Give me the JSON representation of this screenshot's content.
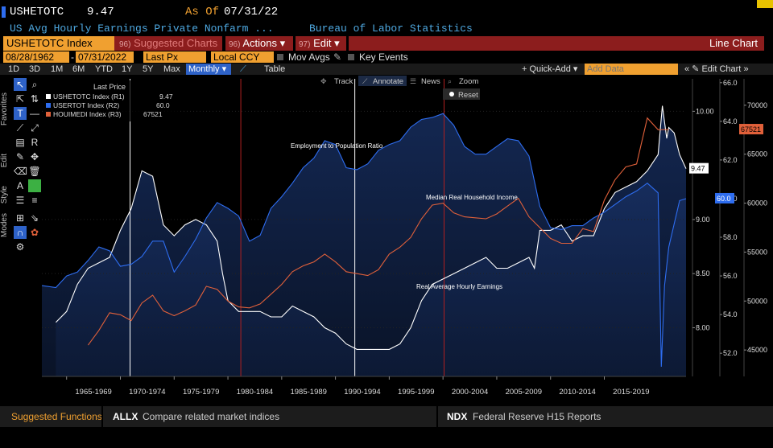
{
  "header": {
    "ticker": "USHETOTC",
    "value": "9.47",
    "asof_label": "As Of",
    "asof_date": "07/31/22",
    "description": "US Avg Hourly Earnings Private Nonfarm ...",
    "source": "Bureau of Labor Statistics"
  },
  "function_bar": {
    "index_label": "USHETOTC Index",
    "suggested_num": "96)",
    "suggested_label": "Suggested Charts",
    "actions_num": "96)",
    "actions_label": "Actions",
    "edit_num": "97)",
    "edit_label": "Edit",
    "chart_type": "Line Chart"
  },
  "params": {
    "start_date": "08/28/1962",
    "end_date": "07/31/2022",
    "price_field": "Last Px",
    "currency": "Local CCY",
    "mov_avgs": "Mov Avgs",
    "key_events": "Key Events"
  },
  "ranges": [
    "1D",
    "3D",
    "1M",
    "6M",
    "YTD",
    "1Y",
    "5Y",
    "Max"
  ],
  "range_selected": "Monthly",
  "table_label": "Table",
  "quick_add": "Quick-Add",
  "add_data_placeholder": "Add Data",
  "edit_chart": "Edit Chart",
  "sidebar_tabs": [
    "Favorites",
    "Edit",
    "Style",
    "Modes"
  ],
  "chart_tools": {
    "track": "Track",
    "annotate": "Annotate",
    "news": "News",
    "zoom": "Zoom",
    "reset": "Reset"
  },
  "legend": {
    "title": "Last Price",
    "items": [
      {
        "label": "USHETOTC Index  (R1)",
        "value": "9.47",
        "color": "#ffffff"
      },
      {
        "label": "USERTOT Index  (R2)",
        "value": "60.0",
        "color": "#2e6df0"
      },
      {
        "label": "HOUIMEDI Index  (R3)",
        "value": "67521",
        "color": "#e0603a"
      }
    ]
  },
  "chart_data": {
    "type": "line",
    "x_tick_labels": [
      "1965-1969",
      "1970-1974",
      "1975-1979",
      "1980-1984",
      "1985-1989",
      "1990-1994",
      "1995-1999",
      "2000-2004",
      "2005-2009",
      "2010-2014",
      "2015-2019"
    ],
    "xlim": [
      1962.7,
      2022.6
    ],
    "annotations": [
      "Employment to Population Ratio",
      "Median Real Household Income",
      "Real Average Hourly Earnings"
    ],
    "event_lines_white": [
      1970.9,
      1991.8
    ],
    "event_lines_red": [
      1981.2,
      2000.1
    ],
    "axes": {
      "R1": {
        "ticks": [
          "8.00",
          "8.50",
          "9.00",
          "10.00"
        ],
        "tick_values": [
          8.0,
          8.5,
          9.0,
          10.0
        ],
        "ylim": [
          7.55,
          10.3
        ],
        "current": "9.47"
      },
      "R2": {
        "ticks": [
          "52.0",
          "54.0",
          "56.0",
          "58.0",
          "60.0",
          "62.0",
          "64.0",
          "66.0"
        ],
        "tick_values": [
          52,
          54,
          56,
          58,
          60,
          62,
          64,
          66
        ],
        "ylim": [
          50.8,
          66.2
        ],
        "current": "60.0"
      },
      "R3": {
        "ticks": [
          "45000",
          "50000",
          "55000",
          "60000",
          "65000",
          "70000"
        ],
        "tick_values": [
          45000,
          50000,
          55000,
          60000,
          65000,
          70000
        ],
        "ylim": [
          42300,
          72700
        ],
        "current": "67521"
      }
    },
    "series": [
      {
        "name": "USHETOTC Index",
        "axis": "R1",
        "color": "#ffffff",
        "fill": true,
        "x": [
          1964,
          1965,
          1966,
          1967,
          1968,
          1969,
          1970,
          1971,
          1972,
          1973,
          1974,
          1975,
          1976,
          1977,
          1978,
          1979,
          1979.5,
          1980,
          1981,
          1982,
          1983,
          1984,
          1985,
          1986,
          1987,
          1988,
          1989,
          1990,
          1991,
          1992,
          1993,
          1994,
          1995,
          1996,
          1997,
          1998,
          1999,
          2000,
          2001,
          2002,
          2003,
          2004,
          2005,
          2006,
          2007,
          2008,
          2008.5,
          2009,
          2010,
          2011,
          2012,
          2013,
          2014,
          2015,
          2016,
          2017,
          2018,
          2019,
          2020,
          2020.4,
          2020.8,
          2021,
          2021.5,
          2022,
          2022.6
        ],
        "values": [
          8.05,
          8.15,
          8.4,
          8.55,
          8.6,
          8.65,
          8.9,
          9.1,
          9.45,
          9.4,
          8.95,
          8.85,
          8.95,
          9.0,
          8.95,
          8.8,
          8.5,
          8.25,
          8.15,
          8.15,
          8.15,
          8.1,
          8.1,
          8.2,
          8.15,
          8.1,
          8.0,
          7.95,
          7.85,
          7.8,
          7.8,
          7.8,
          7.8,
          7.85,
          8.0,
          8.25,
          8.4,
          8.45,
          8.5,
          8.55,
          8.6,
          8.65,
          8.55,
          8.55,
          8.6,
          8.65,
          8.55,
          8.9,
          8.9,
          8.95,
          8.8,
          8.85,
          8.85,
          9.1,
          9.25,
          9.3,
          9.35,
          9.45,
          9.6,
          10.05,
          9.75,
          9.85,
          9.8,
          9.6,
          9.47
        ]
      },
      {
        "name": "USERTOT Index",
        "axis": "R2",
        "color": "#2e6df0",
        "fill": true,
        "x": [
          1962.7,
          1964,
          1965,
          1966,
          1967,
          1968,
          1969,
          1970,
          1971,
          1972,
          1973,
          1974,
          1975,
          1976,
          1977,
          1978,
          1979,
          1980,
          1981,
          1982,
          1983,
          1984,
          1985,
          1986,
          1987,
          1988,
          1989,
          1990,
          1991,
          1992,
          1993,
          1994,
          1995,
          1996,
          1997,
          1998,
          1999,
          2000,
          2001,
          2002,
          2003,
          2004,
          2005,
          2006,
          2007,
          2008,
          2009,
          2010,
          2011,
          2012,
          2013,
          2014,
          2015,
          2016,
          2017,
          2018,
          2019,
          2020,
          2020.3,
          2020.6,
          2021,
          2021.5,
          2022,
          2022.6
        ],
        "values": [
          55.5,
          55.4,
          56.0,
          56.2,
          56.8,
          57.5,
          57.3,
          56.5,
          56.6,
          57.0,
          57.8,
          57.8,
          56.2,
          57.0,
          57.9,
          59.0,
          59.8,
          59.5,
          59.1,
          57.8,
          58.1,
          59.5,
          60.1,
          60.8,
          61.6,
          62.1,
          63.0,
          62.8,
          61.6,
          61.5,
          61.8,
          62.5,
          62.8,
          63.0,
          63.7,
          64.1,
          64.2,
          64.4,
          63.8,
          62.7,
          62.3,
          62.3,
          62.7,
          63.1,
          63.0,
          62.2,
          59.6,
          58.5,
          58.4,
          58.6,
          58.6,
          59.0,
          59.3,
          59.7,
          60.1,
          60.4,
          60.8,
          60.3,
          51.3,
          55.5,
          57.5,
          58.7,
          59.9,
          60.0
        ]
      },
      {
        "name": "HOUIMEDI Index",
        "axis": "R3",
        "color": "#e0603a",
        "fill": false,
        "x": [
          1967,
          1968,
          1969,
          1970,
          1971,
          1972,
          1973,
          1974,
          1975,
          1976,
          1977,
          1978,
          1979,
          1980,
          1981,
          1982,
          1983,
          1984,
          1985,
          1986,
          1987,
          1988,
          1989,
          1990,
          1991,
          1992,
          1993,
          1994,
          1995,
          1996,
          1997,
          1998,
          1999,
          2000,
          2001,
          2002,
          2003,
          2004,
          2005,
          2006,
          2007,
          2008,
          2009,
          2010,
          2011,
          2012,
          2013,
          2014,
          2015,
          2016,
          2017,
          2018,
          2019,
          2020,
          2021
        ],
        "values": [
          45500,
          47000,
          48800,
          48600,
          48000,
          49800,
          50600,
          49000,
          48500,
          49000,
          49600,
          51500,
          51200,
          50000,
          49400,
          49300,
          49700,
          50700,
          51700,
          53000,
          53600,
          54000,
          54800,
          54000,
          53000,
          52800,
          52600,
          53200,
          54800,
          55500,
          56500,
          58400,
          59800,
          60000,
          59000,
          58600,
          58500,
          58400,
          58900,
          59700,
          60500,
          58600,
          57500,
          56400,
          55900,
          55900,
          57400,
          57100,
          60300,
          62400,
          63700,
          64000,
          68700,
          67500,
          67521
        ]
      }
    ]
  },
  "bottom_bar": {
    "suggested": "Suggested Functions",
    "f1_code": "ALLX",
    "f1_text": "Compare related market indices",
    "f2_code": "NDX",
    "f2_text": "Federal Reserve H15 Reports"
  }
}
